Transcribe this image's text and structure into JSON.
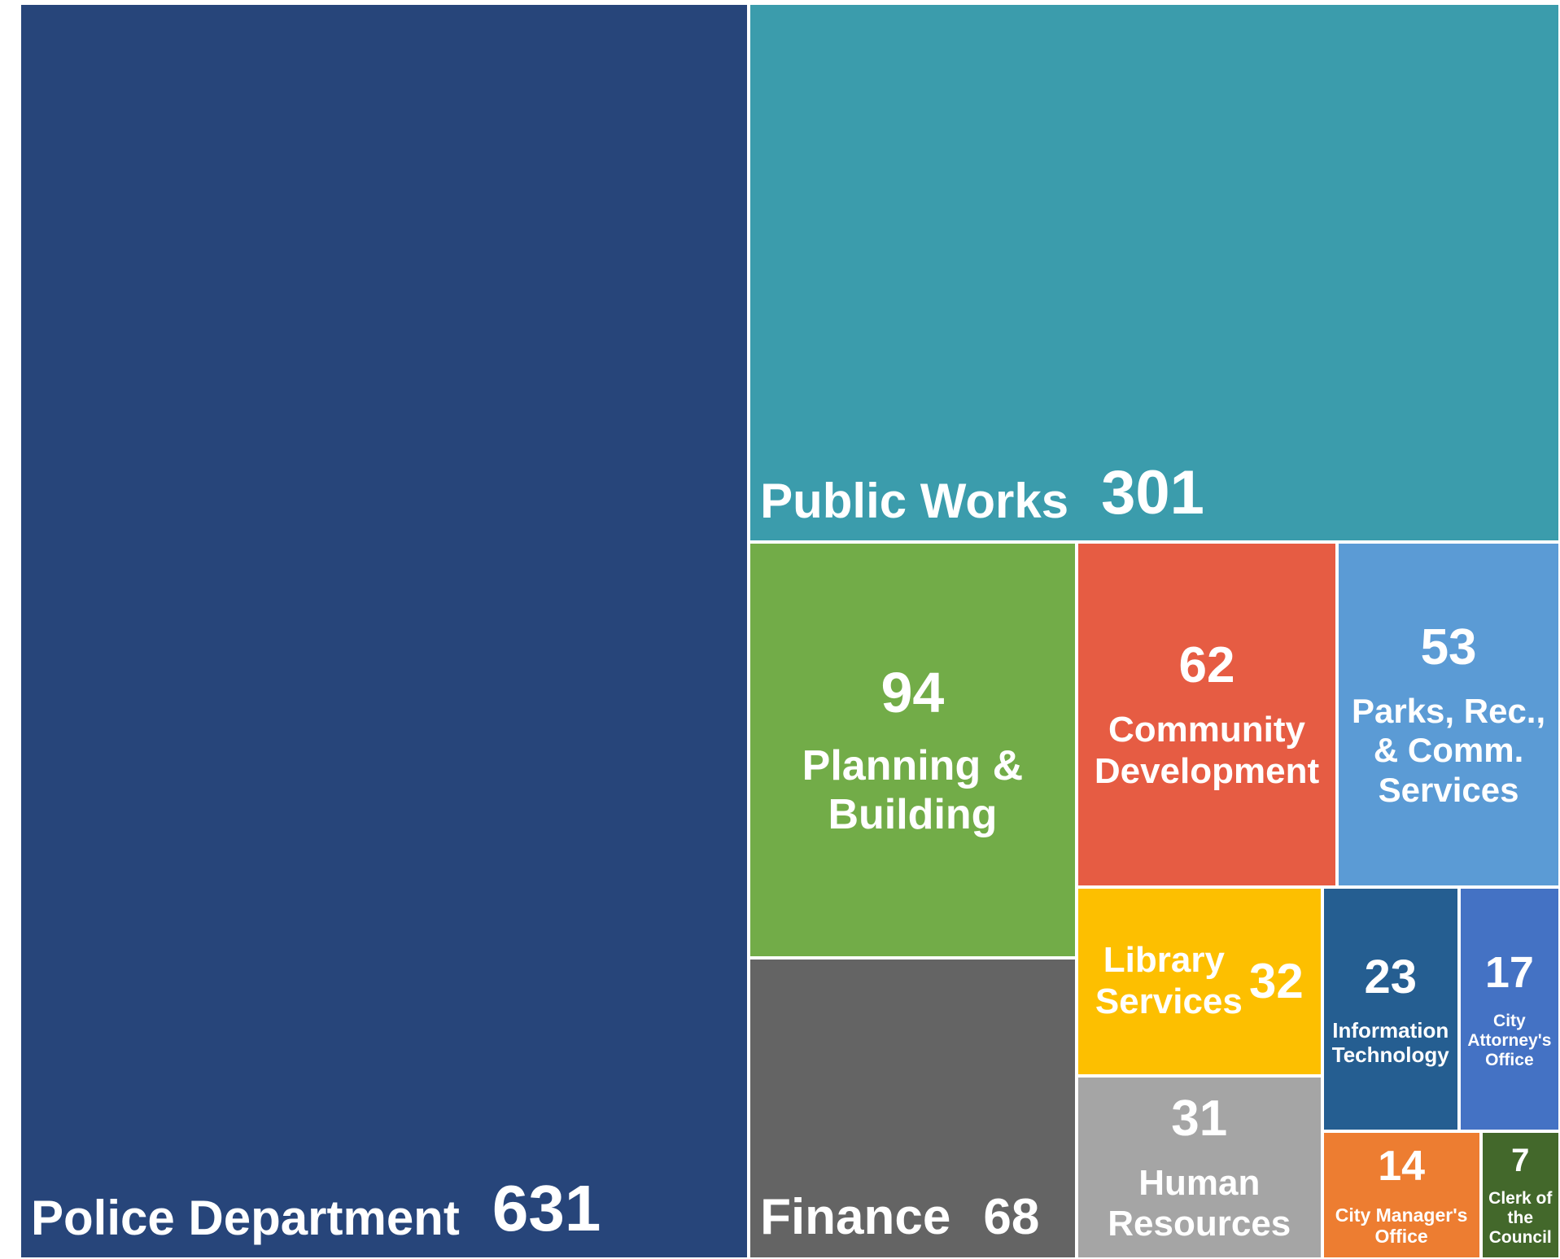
{
  "chart_data": {
    "type": "treemap",
    "categories": [
      "Police Department",
      "Public Works",
      "Planning & Building",
      "Finance",
      "Community Development",
      "Parks, Rec., & Comm. Services",
      "Library Services",
      "Human Resources",
      "Information Technology",
      "City Attorney's Office",
      "City Manager's Office",
      "Clerk of the Council"
    ],
    "values": [
      631,
      301,
      94,
      68,
      62,
      53,
      32,
      31,
      23,
      17,
      14,
      7
    ],
    "colors": [
      "#27457a",
      "#3b9cac",
      "#72ac48",
      "#646464",
      "#e65c43",
      "#5b9bd5",
      "#fdbf00",
      "#a5a5a5",
      "#255e91",
      "#4472c4",
      "#ed7d31",
      "#43682b"
    ]
  }
}
